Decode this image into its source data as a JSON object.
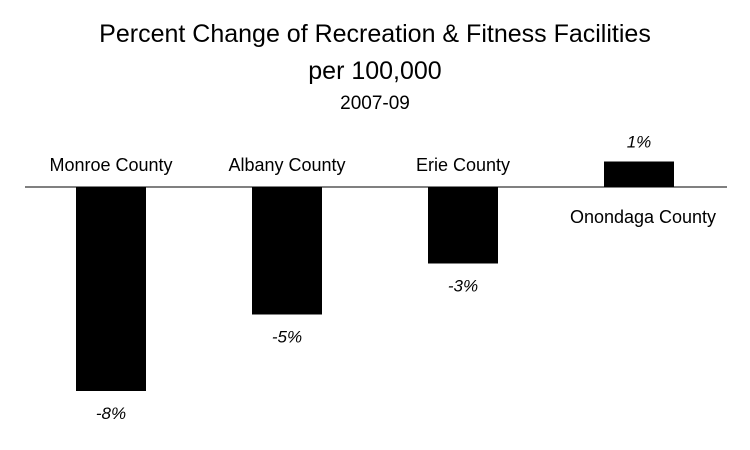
{
  "chart_data": {
    "type": "bar",
    "title": "Percent Change of Recreation & Fitness Facilities",
    "title_line2": "per 100,000",
    "subtitle": "2007-09",
    "categories": [
      "Monroe County",
      "Albany County",
      "Erie County",
      "Onondaga County"
    ],
    "values": [
      -8,
      -5,
      -3,
      1
    ],
    "data_labels": [
      "-8%",
      "-5%",
      "-3%",
      "1%"
    ],
    "unit": "%",
    "xlabel": "",
    "ylabel": "",
    "ylim": [
      -8,
      1
    ],
    "grid": false,
    "legend": "none",
    "bar_color": "#000000"
  }
}
